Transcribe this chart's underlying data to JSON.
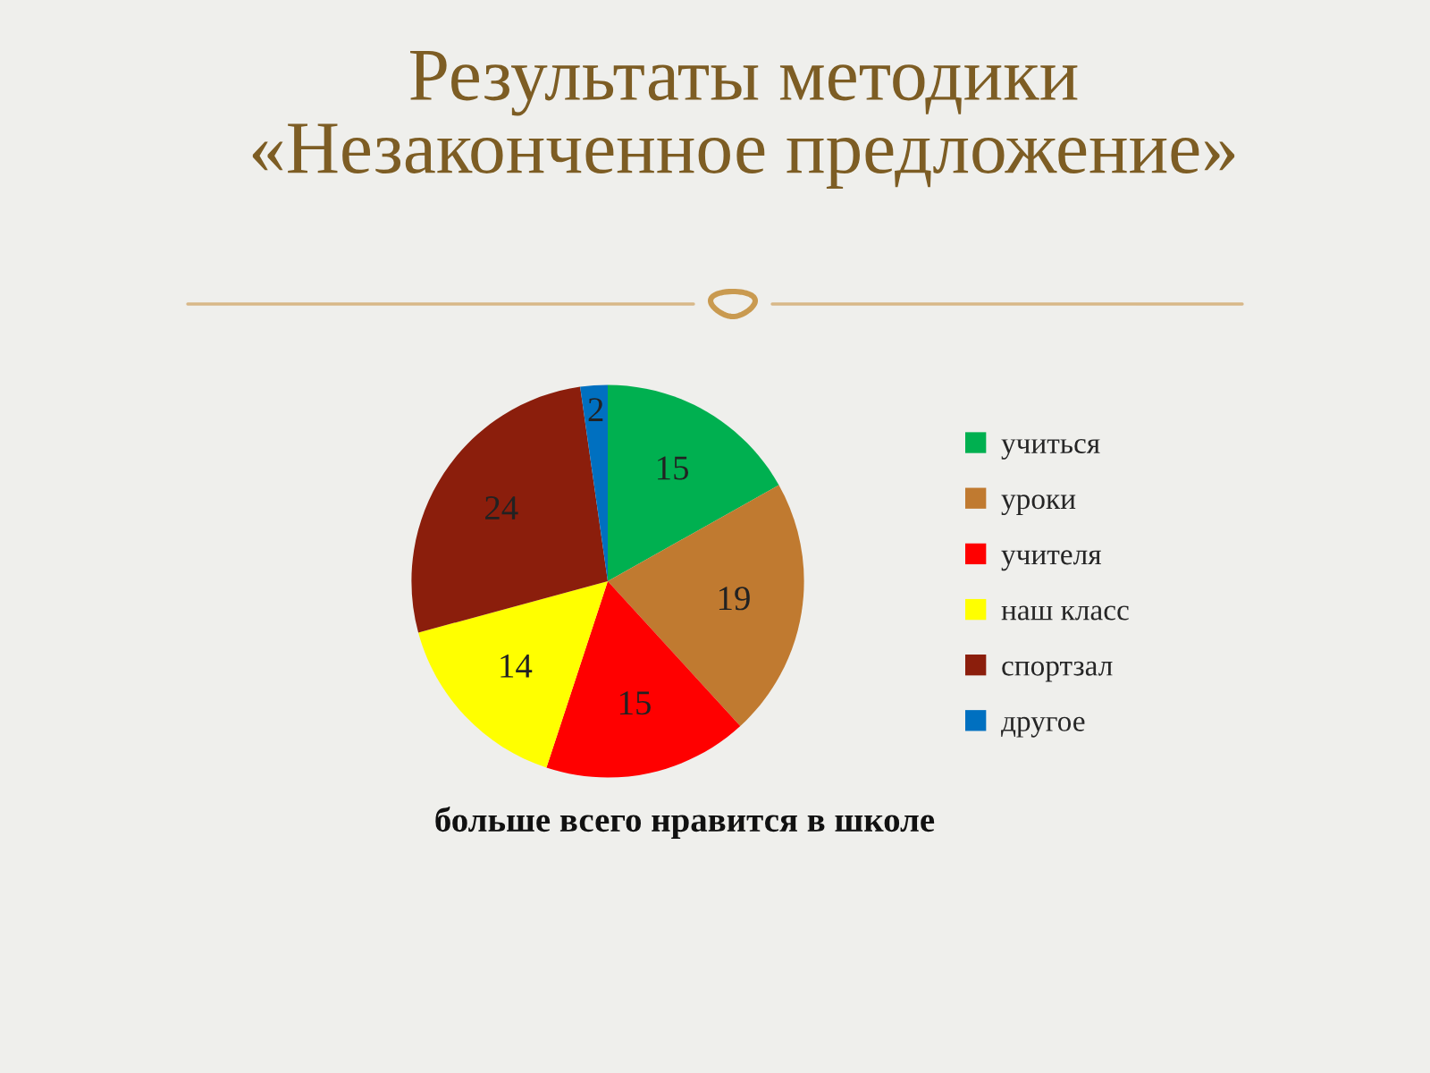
{
  "chart_data": {
    "type": "pie",
    "title": "Результаты методики\n«Незаконченное предложение»",
    "subtitle": "больше всего нравится в школе",
    "categories": [
      "учиться",
      "уроки",
      "учителя",
      "наш класс",
      "спортзал",
      "другое"
    ],
    "values": [
      15,
      19,
      15,
      14,
      24,
      2
    ],
    "colors": [
      "#00b050",
      "#c07a30",
      "#ff0000",
      "#ffff00",
      "#8b1e0c",
      "#0070c0"
    ],
    "data_labels": true,
    "legend": "right"
  }
}
